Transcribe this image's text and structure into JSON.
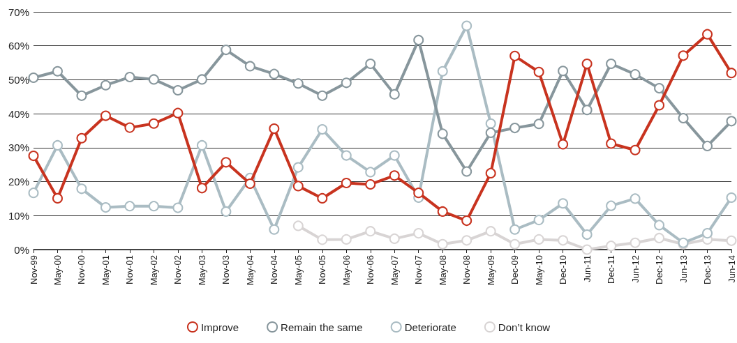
{
  "chart_data": {
    "type": "line",
    "categories": [
      "Nov-99",
      "May-00",
      "Nov-00",
      "May-01",
      "Nov-01",
      "May-02",
      "Nov-02",
      "May-03",
      "Nov-03",
      "May-04",
      "Nov-04",
      "May-05",
      "Nov-05",
      "May-06",
      "Nov-06",
      "May-07",
      "Nov-07",
      "May-08",
      "Nov-08",
      "May-09",
      "Dec-09",
      "May-10",
      "Dec-10",
      "Jun-11",
      "Dec-11",
      "Jun-12",
      "Dec-12",
      "Jun-13",
      "Dec-13",
      "Jun-14"
    ],
    "series": [
      {
        "name": "Improve",
        "color": "#c8331f",
        "values": [
          27.6,
          15.1,
          32.8,
          39.4,
          35.9,
          37.1,
          40.2,
          18.1,
          25.7,
          19.4,
          35.6,
          18.7,
          15.1,
          19.6,
          19.2,
          21.8,
          16.7,
          11.2,
          8.5,
          22.5,
          57,
          52.3,
          31,
          54.7,
          31.2,
          29.3,
          42.5,
          57.1,
          63.4,
          52
        ]
      },
      {
        "name": "Remain the same",
        "color": "#87969c",
        "values": [
          50.6,
          52.5,
          45.3,
          48.4,
          50.8,
          50.1,
          46.9,
          50.1,
          58.8,
          54,
          51.7,
          48.9,
          45.3,
          49.1,
          54.7,
          45.7,
          61.7,
          34.1,
          23,
          34.4,
          35.8,
          37,
          52.6,
          41.1,
          54.7,
          51.6,
          47.5,
          38.7,
          30.5,
          37.8
        ]
      },
      {
        "name": "Deteriorate",
        "color": "#aabcc3",
        "values": [
          16.7,
          30.7,
          17.9,
          12.4,
          12.8,
          12.8,
          12.3,
          30.7,
          11.2,
          21.1,
          5.9,
          24.2,
          35.4,
          27.7,
          22.8,
          27.7,
          15.3,
          52.5,
          65.9,
          37.1,
          5.9,
          8.7,
          13.6,
          4.4,
          12.9,
          15,
          7.2,
          2,
          4.8,
          15.3
        ]
      },
      {
        "name": "Don’t know",
        "color": "#d8d4d4",
        "values": [
          null,
          null,
          null,
          null,
          null,
          null,
          null,
          null,
          null,
          null,
          null,
          7,
          2.9,
          3,
          5.4,
          3.2,
          4.8,
          1.6,
          2.7,
          5.4,
          1.6,
          3,
          2.7,
          0,
          1.1,
          2,
          3.4,
          1.6,
          3,
          2.6
        ]
      }
    ],
    "ylim": [
      0,
      70
    ],
    "yticks": [
      {
        "value": 0,
        "label": "0%"
      },
      {
        "value": 10,
        "label": "10%"
      },
      {
        "value": 20,
        "label": "20%"
      },
      {
        "value": 30,
        "label": "30%"
      },
      {
        "value": 40,
        "label": "40%"
      },
      {
        "value": 50,
        "label": "50%"
      },
      {
        "value": 60,
        "label": "60%"
      },
      {
        "value": 70,
        "label": "70%"
      }
    ],
    "grid": "y",
    "legend": "bottom",
    "marker": "circle",
    "line_style": "solid"
  }
}
